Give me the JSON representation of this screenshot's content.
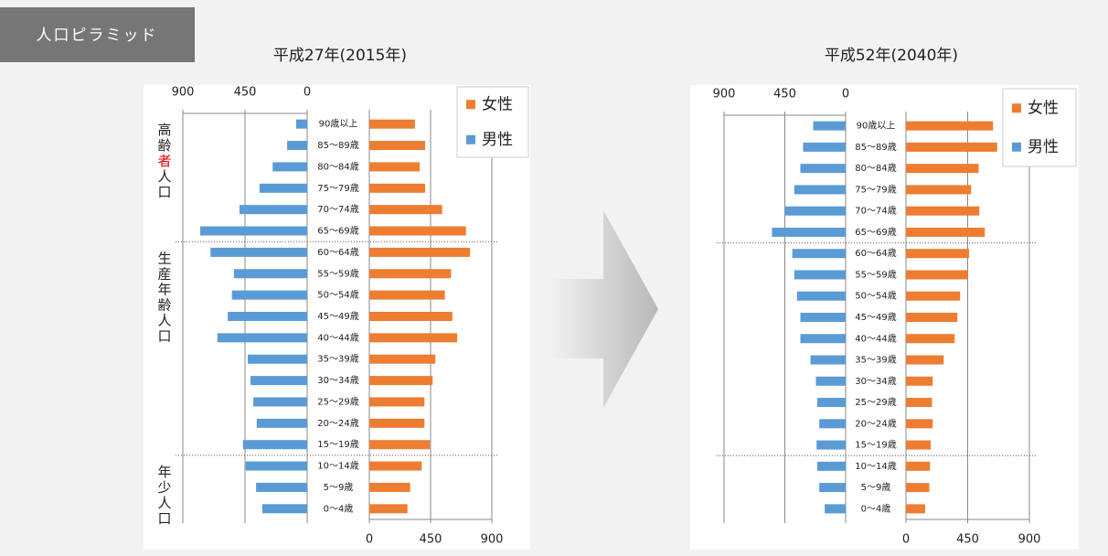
{
  "badge": "人口ピラミッド",
  "chart_data": [
    {
      "type": "pyramid",
      "title": "平成27年(2015年)",
      "categories": [
        "90歳以上",
        "85～89歳",
        "80～84歳",
        "75～79歳",
        "70～74歳",
        "65～69歳",
        "60～64歳",
        "55～59歳",
        "50～54歳",
        "45～49歳",
        "40～44歳",
        "35～39歳",
        "30～34歳",
        "25～29歳",
        "20～24歳",
        "15～19歳",
        "10～14歳",
        "5～9歳",
        "0～4歳"
      ],
      "series": [
        {
          "name": "女性",
          "color": "#ed7d31",
          "values": [
            335,
            410,
            370,
            410,
            535,
            710,
            740,
            600,
            555,
            610,
            645,
            485,
            465,
            405,
            405,
            445,
            385,
            300,
            280
          ]
        },
        {
          "name": "男性",
          "color": "#5b9bd5",
          "values": [
            80,
            145,
            250,
            345,
            490,
            775,
            700,
            530,
            545,
            575,
            650,
            430,
            410,
            390,
            365,
            465,
            445,
            370,
            325
          ]
        }
      ],
      "xlim": [
        0,
        900
      ],
      "xticks": [
        0,
        450,
        900
      ],
      "grid": true,
      "legend": "top-right",
      "groups": [
        {
          "label": "高齢者人口",
          "from": "90歳以上",
          "to": "65～69歳",
          "highlight": {
            "index": 2,
            "color": "#e60000"
          }
        },
        {
          "label": "生産年齢人口",
          "from": "60～64歳",
          "to": "15～19歳"
        },
        {
          "label": "年少人口",
          "from": "10～14歳",
          "to": "0～4歳"
        }
      ]
    },
    {
      "type": "pyramid",
      "title": "平成52年(2040年)",
      "categories": [
        "90歳以上",
        "85～89歳",
        "80～84歳",
        "75～79歳",
        "70～74歳",
        "65～69歳",
        "60～64歳",
        "55～59歳",
        "50～54歳",
        "45～49歳",
        "40～44歳",
        "35～39歳",
        "30～34歳",
        "25～29歳",
        "20～24歳",
        "15～19歳",
        "10～14歳",
        "5～9歳",
        "0～4歳"
      ],
      "series": [
        {
          "name": "女性",
          "color": "#ed7d31",
          "values": [
            635,
            665,
            530,
            475,
            535,
            575,
            460,
            450,
            395,
            375,
            355,
            275,
            195,
            190,
            195,
            180,
            175,
            170,
            140
          ]
        },
        {
          "name": "男性",
          "color": "#5b9bd5",
          "values": [
            240,
            315,
            335,
            380,
            450,
            545,
            395,
            380,
            360,
            335,
            335,
            260,
            220,
            210,
            195,
            215,
            210,
            195,
            155
          ]
        }
      ],
      "xlim": [
        0,
        900
      ],
      "xticks": [
        0,
        450,
        900
      ],
      "grid": true,
      "legend": "top-right",
      "groups": [
        {
          "from": "90歳以上",
          "to": "65～69歳"
        },
        {
          "from": "60～64歳",
          "to": "15～19歳"
        },
        {
          "from": "10～14歳",
          "to": "0～4歳"
        }
      ]
    }
  ]
}
